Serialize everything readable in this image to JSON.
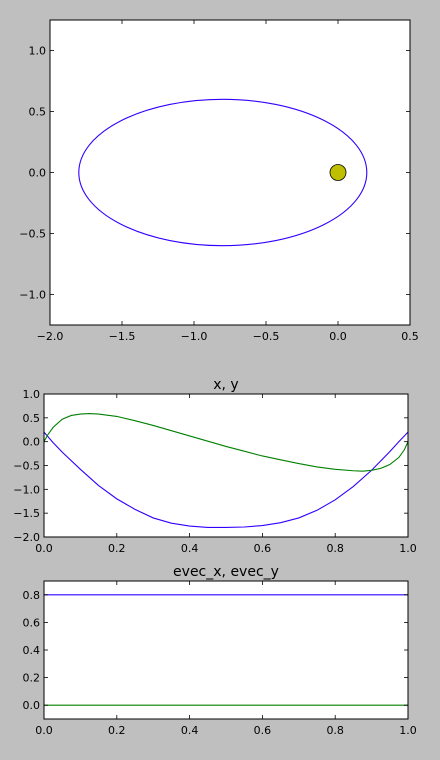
{
  "figure": {
    "background": "#bfbfbf"
  },
  "chart_data": [
    {
      "type": "line",
      "title": "",
      "xlabel": "",
      "ylabel": "",
      "xlim": [
        -2.0,
        0.5
      ],
      "ylim": [
        -1.25,
        1.25
      ],
      "xticks": [
        -2.0,
        -1.5,
        -1.0,
        -0.5,
        0.0,
        0.5
      ],
      "xtick_labels": [
        "−2.0",
        "−1.5",
        "−1.0",
        "−0.5",
        "0.0",
        "0.5"
      ],
      "yticks": [
        -1.0,
        -0.5,
        0.0,
        0.5,
        1.0
      ],
      "ytick_labels": [
        "−1.0",
        "−0.5",
        "0.0",
        "0.5",
        "1.0"
      ],
      "grid": false,
      "series": [
        {
          "kind": "ellipse-orbit",
          "color": "#3300ff",
          "center": [
            -0.8,
            0.0
          ],
          "semi_axes": [
            1.0,
            0.6
          ],
          "x_range": [
            -1.8,
            0.2
          ],
          "y_range": [
            -0.6,
            0.6
          ]
        },
        {
          "kind": "marker",
          "shape": "circle",
          "x": 0.0,
          "y": 0.0,
          "color": "#bfbf00"
        }
      ]
    },
    {
      "type": "line",
      "title": "x, y",
      "xlabel": "",
      "ylabel": "",
      "xlim": [
        0.0,
        1.0
      ],
      "ylim": [
        -2.0,
        1.0
      ],
      "xticks": [
        0.0,
        0.2,
        0.4,
        0.6,
        0.8,
        1.0
      ],
      "xtick_labels": [
        "0.0",
        "0.2",
        "0.4",
        "0.6",
        "0.8",
        "1.0"
      ],
      "yticks": [
        -2.0,
        -1.5,
        -1.0,
        -0.5,
        0.0,
        0.5,
        1.0
      ],
      "ytick_labels": [
        "−2.0",
        "−1.5",
        "−1.0",
        "−0.5",
        "0.0",
        "0.5",
        "1.0"
      ],
      "grid": false,
      "series": [
        {
          "color": "#3300ff",
          "points": [
            [
              0.0,
              0.2
            ],
            [
              0.025,
              -0.02
            ],
            [
              0.05,
              -0.22
            ],
            [
              0.1,
              -0.58
            ],
            [
              0.15,
              -0.92
            ],
            [
              0.2,
              -1.2
            ],
            [
              0.25,
              -1.42
            ],
            [
              0.3,
              -1.6
            ],
            [
              0.35,
              -1.71
            ],
            [
              0.4,
              -1.77
            ],
            [
              0.45,
              -1.8
            ],
            [
              0.5,
              -1.8
            ],
            [
              0.55,
              -1.79
            ],
            [
              0.6,
              -1.76
            ],
            [
              0.65,
              -1.7
            ],
            [
              0.7,
              -1.6
            ],
            [
              0.75,
              -1.44
            ],
            [
              0.8,
              -1.22
            ],
            [
              0.85,
              -0.94
            ],
            [
              0.9,
              -0.6
            ],
            [
              0.95,
              -0.21
            ],
            [
              0.975,
              0.0
            ],
            [
              1.0,
              0.2
            ]
          ]
        },
        {
          "color": "#008000",
          "points": [
            [
              0.0,
              0.0
            ],
            [
              0.01,
              0.14
            ],
            [
              0.025,
              0.3
            ],
            [
              0.05,
              0.47
            ],
            [
              0.075,
              0.55
            ],
            [
              0.1,
              0.58
            ],
            [
              0.125,
              0.59
            ],
            [
              0.15,
              0.58
            ],
            [
              0.2,
              0.53
            ],
            [
              0.25,
              0.44
            ],
            [
              0.3,
              0.34
            ],
            [
              0.35,
              0.23
            ],
            [
              0.4,
              0.12
            ],
            [
              0.45,
              0.01
            ],
            [
              0.5,
              -0.1
            ],
            [
              0.55,
              -0.2
            ],
            [
              0.6,
              -0.3
            ],
            [
              0.65,
              -0.38
            ],
            [
              0.7,
              -0.46
            ],
            [
              0.75,
              -0.53
            ],
            [
              0.8,
              -0.58
            ],
            [
              0.85,
              -0.61
            ],
            [
              0.875,
              -0.62
            ],
            [
              0.9,
              -0.6
            ],
            [
              0.925,
              -0.56
            ],
            [
              0.95,
              -0.48
            ],
            [
              0.975,
              -0.33
            ],
            [
              0.99,
              -0.17
            ],
            [
              1.0,
              0.0
            ]
          ]
        }
      ]
    },
    {
      "type": "line",
      "title": "evec_x, evec_y",
      "xlabel": "",
      "ylabel": "",
      "xlim": [
        0.0,
        1.0
      ],
      "ylim": [
        -0.1,
        0.9
      ],
      "xticks": [
        0.0,
        0.2,
        0.4,
        0.6,
        0.8,
        1.0
      ],
      "xtick_labels": [
        "0.0",
        "0.2",
        "0.4",
        "0.6",
        "0.8",
        "1.0"
      ],
      "yticks": [
        0.0,
        0.2,
        0.4,
        0.6,
        0.8
      ],
      "ytick_labels": [
        "0.0",
        "0.2",
        "0.4",
        "0.6",
        "0.8"
      ],
      "grid": false,
      "series": [
        {
          "color": "#3300ff",
          "points": [
            [
              0.0,
              0.8
            ],
            [
              1.0,
              0.8
            ]
          ]
        },
        {
          "color": "#008000",
          "points": [
            [
              0.0,
              0.0
            ],
            [
              1.0,
              0.0
            ]
          ]
        }
      ]
    }
  ]
}
